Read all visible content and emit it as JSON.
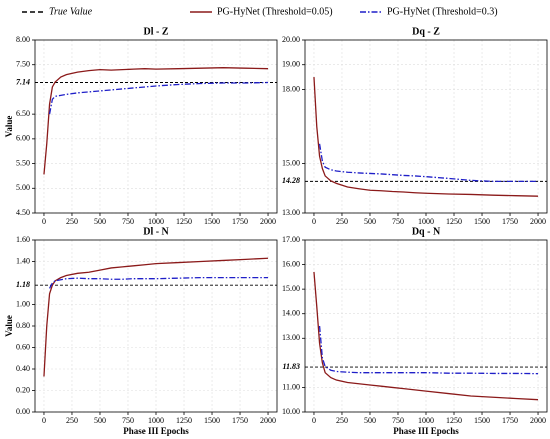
{
  "legend": [
    {
      "name": "True Value",
      "color": "#000000"
    },
    {
      "name": "PG-HyNet (Threshold=0.05)",
      "color": "#8b1a1a"
    },
    {
      "name": "PG-HyNet (Threshold=0.3)",
      "color": "#1f1fc8"
    }
  ],
  "chart_data": [
    {
      "type": "line",
      "title": "Dl - Z",
      "ylabel": "Value",
      "x": [
        0,
        25,
        50,
        75,
        100,
        150,
        200,
        300,
        400,
        500,
        600,
        700,
        800,
        900,
        1000,
        1200,
        1400,
        1600,
        1800,
        2000
      ],
      "xlim": [
        -80,
        2080
      ],
      "xticks": [
        0,
        250,
        500,
        750,
        1000,
        1250,
        1500,
        1750,
        2000
      ],
      "ylim": [
        4.5,
        8.0
      ],
      "yticks": [
        {
          "value": 4.5,
          "label": "4.50"
        },
        {
          "value": 5,
          "label": "5.00"
        },
        {
          "value": 5.5,
          "label": "5.50"
        },
        {
          "value": 6,
          "label": "6.00"
        },
        {
          "value": 6.5,
          "label": "6.50"
        },
        {
          "value": 7.5,
          "label": "7.50"
        },
        {
          "value": 8,
          "label": "8.00"
        }
      ],
      "reference": {
        "value": 7.14
      },
      "series": [
        {
          "color": "#8b1a1a",
          "values": [
            5.28,
            5.9,
            6.7,
            7.05,
            7.15,
            7.25,
            7.3,
            7.35,
            7.38,
            7.4,
            7.39,
            7.4,
            7.41,
            7.42,
            7.41,
            7.42,
            7.43,
            7.44,
            7.43,
            7.42
          ]
        },
        {
          "color": "#1f1fc8",
          "values": [
            null,
            null,
            6.5,
            6.8,
            6.86,
            6.88,
            6.9,
            6.93,
            6.95,
            6.97,
            6.99,
            7.01,
            7.03,
            7.05,
            7.07,
            7.1,
            7.12,
            7.13,
            7.13,
            7.14
          ]
        }
      ]
    },
    {
      "type": "line",
      "title": "Dq - Z",
      "x": [
        0,
        25,
        50,
        75,
        100,
        150,
        200,
        300,
        400,
        500,
        600,
        700,
        800,
        900,
        1000,
        1200,
        1400,
        1600,
        1800,
        2000
      ],
      "xlim": [
        -80,
        2080
      ],
      "xticks": [
        0,
        250,
        500,
        750,
        1000,
        1250,
        1500,
        1750,
        2000
      ],
      "ylim": [
        13,
        20
      ],
      "yticks": [
        {
          "value": 13,
          "label": "13.00"
        },
        {
          "value": 15,
          "label": "15.00"
        },
        {
          "value": 18,
          "label": "18.00"
        },
        {
          "value": 19,
          "label": "19.00"
        },
        {
          "value": 20,
          "label": "20.00"
        }
      ],
      "reference": {
        "value": 14.28
      },
      "series": [
        {
          "color": "#8b1a1a",
          "values": [
            18.5,
            16.5,
            15.3,
            14.8,
            14.5,
            14.3,
            14.2,
            14.05,
            13.98,
            13.92,
            13.9,
            13.87,
            13.85,
            13.82,
            13.8,
            13.77,
            13.75,
            13.72,
            13.7,
            13.68
          ]
        },
        {
          "color": "#1f1fc8",
          "values": [
            null,
            null,
            15.8,
            15.1,
            14.85,
            14.75,
            14.7,
            14.65,
            14.62,
            14.6,
            14.58,
            14.55,
            14.52,
            14.5,
            14.47,
            14.4,
            14.32,
            14.28,
            14.28,
            14.28
          ]
        }
      ]
    },
    {
      "type": "line",
      "title": "Dl - N",
      "ylabel": "Value",
      "xlabel": "Phase III Epochs",
      "x": [
        0,
        25,
        50,
        75,
        100,
        150,
        200,
        300,
        400,
        500,
        600,
        700,
        800,
        900,
        1000,
        1200,
        1400,
        1600,
        1800,
        2000
      ],
      "xlim": [
        -80,
        2080
      ],
      "xticks": [
        0,
        250,
        500,
        750,
        1000,
        1250,
        1500,
        1750,
        2000
      ],
      "ylim": [
        0,
        1.6
      ],
      "yticks": [
        {
          "value": 0,
          "label": "0.00"
        },
        {
          "value": 0.2,
          "label": "0.20"
        },
        {
          "value": 0.4,
          "label": "0.40"
        },
        {
          "value": 0.6,
          "label": "0.60"
        },
        {
          "value": 0.8,
          "label": "0.80"
        },
        {
          "value": 1,
          "label": "1.00"
        },
        {
          "value": 1.4,
          "label": "1.40"
        },
        {
          "value": 1.6,
          "label": "1.60"
        }
      ],
      "reference": {
        "value": 1.18
      },
      "series": [
        {
          "color": "#8b1a1a",
          "values": [
            0.33,
            0.8,
            1.1,
            1.18,
            1.22,
            1.25,
            1.27,
            1.29,
            1.3,
            1.32,
            1.34,
            1.35,
            1.36,
            1.37,
            1.38,
            1.39,
            1.4,
            1.41,
            1.42,
            1.43
          ]
        },
        {
          "color": "#1f1fc8",
          "values": [
            null,
            null,
            1.15,
            1.2,
            1.22,
            1.23,
            1.24,
            1.245,
            1.24,
            1.24,
            1.235,
            1.235,
            1.24,
            1.24,
            1.24,
            1.245,
            1.25,
            1.25,
            1.25,
            1.25
          ]
        }
      ]
    },
    {
      "type": "line",
      "title": "Dq - N",
      "xlabel": "Phase III Epochs",
      "x": [
        0,
        25,
        50,
        75,
        100,
        150,
        200,
        300,
        400,
        500,
        600,
        700,
        800,
        900,
        1000,
        1200,
        1400,
        1600,
        1800,
        2000
      ],
      "xlim": [
        -80,
        2080
      ],
      "xticks": [
        0,
        250,
        500,
        750,
        1000,
        1250,
        1500,
        1750,
        2000
      ],
      "ylim": [
        10,
        17
      ],
      "yticks": [
        {
          "value": 10,
          "label": "10.00"
        },
        {
          "value": 11,
          "label": "11.00"
        },
        {
          "value": 13,
          "label": "13.00"
        },
        {
          "value": 14,
          "label": "14.00"
        },
        {
          "value": 15,
          "label": "15.00"
        },
        {
          "value": 16,
          "label": "16.00"
        },
        {
          "value": 17,
          "label": "17.00"
        }
      ],
      "reference": {
        "value": 11.83
      },
      "series": [
        {
          "color": "#8b1a1a",
          "values": [
            15.7,
            14.3,
            12.8,
            12,
            11.6,
            11.4,
            11.3,
            11.2,
            11.15,
            11.1,
            11.05,
            11,
            10.95,
            10.9,
            10.85,
            10.75,
            10.65,
            10.6,
            10.55,
            10.5
          ]
        },
        {
          "color": "#1f1fc8",
          "values": [
            null,
            null,
            13.5,
            12.2,
            11.85,
            11.7,
            11.65,
            11.62,
            11.6,
            11.6,
            11.6,
            11.6,
            11.6,
            11.6,
            11.6,
            11.58,
            11.58,
            11.57,
            11.57,
            11.56
          ]
        }
      ]
    }
  ]
}
